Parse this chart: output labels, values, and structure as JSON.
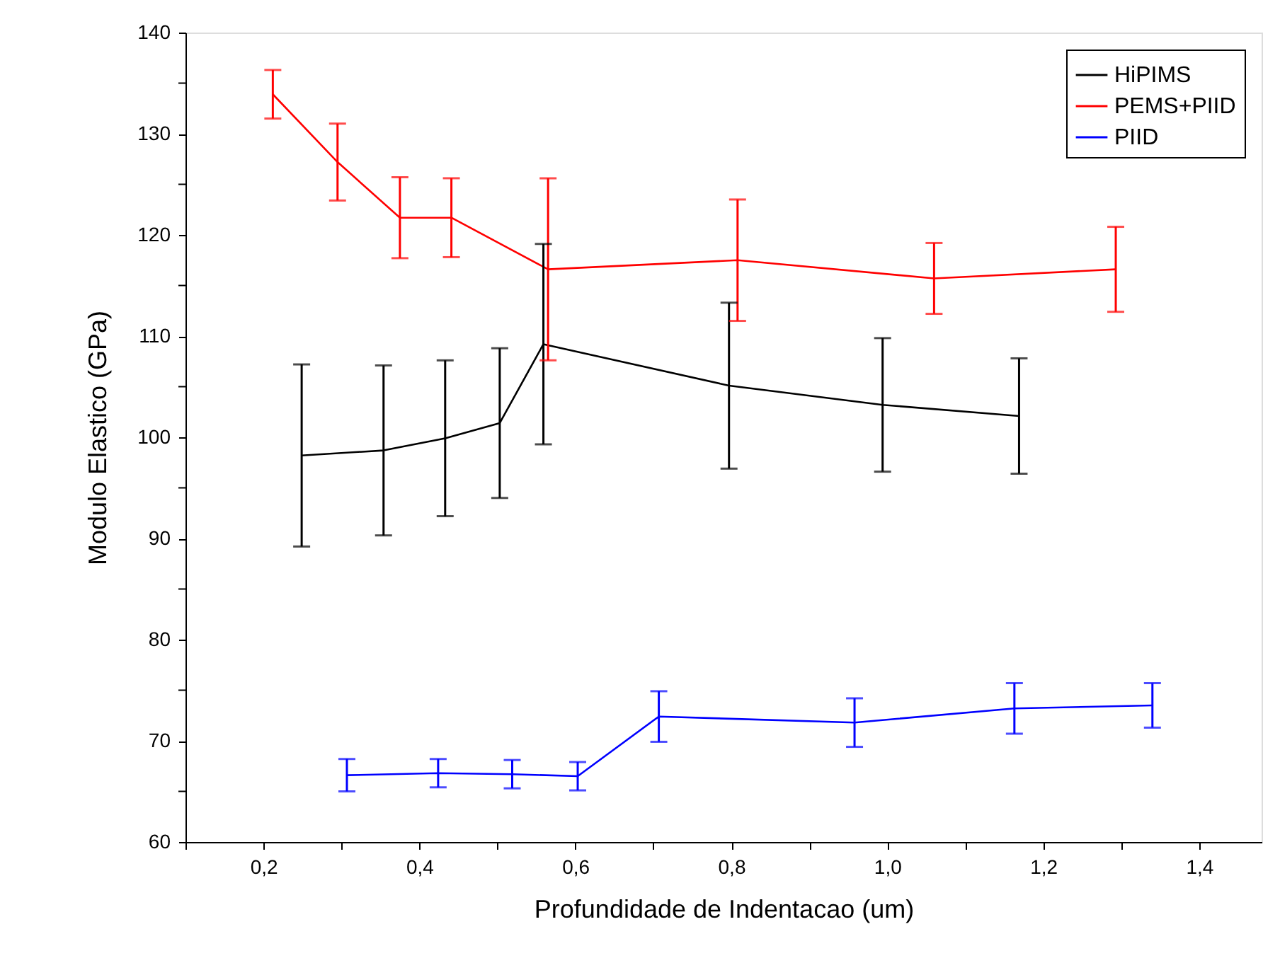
{
  "chart_data": {
    "type": "line",
    "xlabel": "Profundidade de Indentacao (um)",
    "ylabel": "Modulo Elastico (GPa)",
    "xlim": [
      0.1,
      1.48
    ],
    "ylim": [
      60,
      140
    ],
    "xticks": [
      {
        "value": 0.1,
        "label": null
      },
      {
        "value": 0.2,
        "label": "0,2"
      },
      {
        "value": 0.3,
        "label": null
      },
      {
        "value": 0.4,
        "label": "0,4"
      },
      {
        "value": 0.5,
        "label": null
      },
      {
        "value": 0.6,
        "label": "0,6"
      },
      {
        "value": 0.7,
        "label": null
      },
      {
        "value": 0.8,
        "label": "0,8"
      },
      {
        "value": 0.9,
        "label": null
      },
      {
        "value": 1.0,
        "label": "1,0"
      },
      {
        "value": 1.1,
        "label": null
      },
      {
        "value": 1.2,
        "label": "1,2"
      },
      {
        "value": 1.3,
        "label": null
      },
      {
        "value": 1.4,
        "label": "1,4"
      }
    ],
    "yticks": [
      60,
      {
        "value": 65,
        "label": null
      },
      70,
      {
        "value": 75,
        "label": null
      },
      80,
      {
        "value": 85,
        "label": null
      },
      90,
      {
        "value": 95,
        "label": null
      },
      100,
      {
        "value": 105,
        "label": null
      },
      110,
      {
        "value": 115,
        "label": null
      },
      120,
      {
        "value": 125,
        "label": null
      },
      130,
      {
        "value": 135,
        "label": null
      },
      140
    ],
    "grid": false,
    "legend": "top right",
    "marker": "none",
    "line_style": "solid",
    "series": [
      {
        "name": "HiPIMS",
        "color": "#000000",
        "x": [
          0.249,
          0.354,
          0.433,
          0.503,
          0.559,
          0.797,
          0.994,
          1.169
        ],
        "values": [
          98.2,
          98.7,
          99.9,
          101.4,
          109.2,
          105.1,
          103.2,
          102.1
        ],
        "errors": [
          9,
          8.4,
          7.7,
          7.4,
          9.9,
          8.2,
          6.6,
          5.7
        ]
      },
      {
        "name": "PEMS+PIID",
        "color": "#ff0000",
        "x": [
          0.212,
          0.295,
          0.375,
          0.441,
          0.565,
          0.808,
          1.06,
          1.293
        ],
        "values": [
          133.9,
          127.2,
          121.7,
          121.7,
          116.6,
          117.5,
          115.7,
          116.6
        ],
        "errors": [
          2.4,
          3.8,
          4,
          3.9,
          9,
          6,
          3.5,
          4.2
        ]
      },
      {
        "name": "PIID",
        "color": "#0000ff",
        "x": [
          0.307,
          0.424,
          0.519,
          0.603,
          0.707,
          0.958,
          1.163,
          1.34
        ],
        "values": [
          66.6,
          66.8,
          66.7,
          66.5,
          72.4,
          71.8,
          73.2,
          73.5
        ],
        "errors": [
          1.6,
          1.4,
          1.4,
          1.4,
          2.5,
          2.4,
          2.5,
          2.2
        ]
      }
    ]
  }
}
